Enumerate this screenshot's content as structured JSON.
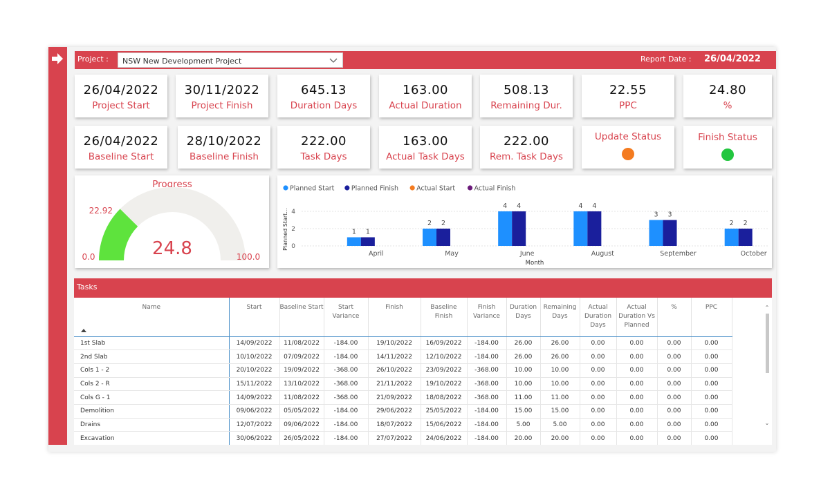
{
  "header": {
    "project_label": "Project :",
    "project_value": "NSW New Development Project",
    "report_date_label": "Report Date :",
    "report_date_value": "26/04/2022"
  },
  "kpis_row1": [
    {
      "value": "26/04/2022",
      "caption": "Project Start"
    },
    {
      "value": "30/11/2022",
      "caption": "Project Finish"
    },
    {
      "value": "645.13",
      "caption": "Duration Days"
    },
    {
      "value": "163.00",
      "caption": "Actual Duration"
    },
    {
      "value": "508.13",
      "caption": "Remaining Dur."
    },
    {
      "value": "22.55",
      "caption": "PPC"
    },
    {
      "value": "24.80",
      "caption": "%"
    }
  ],
  "kpis_row2": [
    {
      "value": "26/04/2022",
      "caption": "Baseline Start"
    },
    {
      "value": "28/10/2022",
      "caption": "Baseline Finish"
    },
    {
      "value": "222.00",
      "caption": "Task Days"
    },
    {
      "value": "163.00",
      "caption": "Actual Task Days"
    },
    {
      "value": "222.00",
      "caption": "Rem. Task Days"
    }
  ],
  "status": {
    "update_label": "Update Status",
    "update_color": "#f47b20",
    "finish_label": "Finish Status",
    "finish_color": "#22c63f"
  },
  "gauge": {
    "title": "Progress",
    "min": "0.0",
    "max": "100.0",
    "target": "22.92",
    "value": "24.8",
    "value_num": 24.8,
    "target_num": 22.92,
    "fill_color": "#5ee33d",
    "track_color": "#f0efec"
  },
  "chart_data": {
    "type": "bar",
    "ylabel": "Planned Start...",
    "xlabel": "Month",
    "categories": [
      "April",
      "May",
      "June",
      "August",
      "September",
      "October"
    ],
    "ylim": [
      0,
      4
    ],
    "yticks": [
      0,
      2,
      4
    ],
    "grid": true,
    "legend_placement": "top-left",
    "series": [
      {
        "name": "Planned Start",
        "color": "#1e90ff",
        "values": [
          1,
          2,
          4,
          4,
          3,
          2
        ]
      },
      {
        "name": "Planned Finish",
        "color": "#1a1f9c",
        "values": [
          1,
          2,
          4,
          4,
          3,
          2
        ]
      },
      {
        "name": "Actual Start",
        "color": "#f47b20",
        "values": [
          0,
          0,
          0,
          0,
          0,
          0
        ]
      },
      {
        "name": "Actual Finish",
        "color": "#6b1a7a",
        "values": [
          0,
          0,
          0,
          0,
          0,
          0
        ]
      }
    ]
  },
  "tasks": {
    "title": "Tasks",
    "columns": [
      "Name",
      "Start",
      "Baseline Start",
      "Start Variance",
      "Finish",
      "Baseline Finish",
      "Finish Variance",
      "Duration Days",
      "Remaining Days",
      "Actual Duration Days",
      "Actual Duration Vs Planned",
      "%",
      "PPC"
    ],
    "rows": [
      [
        "1st Slab",
        "14/09/2022",
        "11/08/2022",
        "-184.00",
        "19/10/2022",
        "16/09/2022",
        "-184.00",
        "26.00",
        "26.00",
        "0.00",
        "0.00",
        "0.00",
        "0.00"
      ],
      [
        "2nd Slab",
        "10/10/2022",
        "07/09/2022",
        "-184.00",
        "14/11/2022",
        "12/10/2022",
        "-184.00",
        "26.00",
        "26.00",
        "0.00",
        "0.00",
        "0.00",
        "0.00"
      ],
      [
        "Cols 1 - 2",
        "20/10/2022",
        "19/09/2022",
        "-368.00",
        "26/10/2022",
        "23/09/2022",
        "-368.00",
        "10.00",
        "10.00",
        "0.00",
        "0.00",
        "0.00",
        "0.00"
      ],
      [
        "Cols 2 - R",
        "15/11/2022",
        "13/10/2022",
        "-368.00",
        "21/11/2022",
        "19/10/2022",
        "-368.00",
        "10.00",
        "10.00",
        "0.00",
        "0.00",
        "0.00",
        "0.00"
      ],
      [
        "Cols G - 1",
        "14/09/2022",
        "11/08/2022",
        "-368.00",
        "21/09/2022",
        "18/08/2022",
        "-368.00",
        "11.00",
        "11.00",
        "0.00",
        "0.00",
        "0.00",
        "0.00"
      ],
      [
        "Demolition",
        "09/06/2022",
        "05/05/2022",
        "-184.00",
        "29/06/2022",
        "25/05/2022",
        "-184.00",
        "15.00",
        "15.00",
        "0.00",
        "0.00",
        "0.00",
        "0.00"
      ],
      [
        "Drains",
        "12/07/2022",
        "09/06/2022",
        "-184.00",
        "18/07/2022",
        "15/06/2022",
        "-184.00",
        "5.00",
        "5.00",
        "0.00",
        "0.00",
        "0.00",
        "0.00"
      ],
      [
        "Excavation",
        "30/06/2022",
        "26/05/2022",
        "-184.00",
        "27/07/2022",
        "24/06/2022",
        "-184.00",
        "20.00",
        "20.00",
        "0.00",
        "0.00",
        "0.00",
        "0.00"
      ]
    ]
  }
}
